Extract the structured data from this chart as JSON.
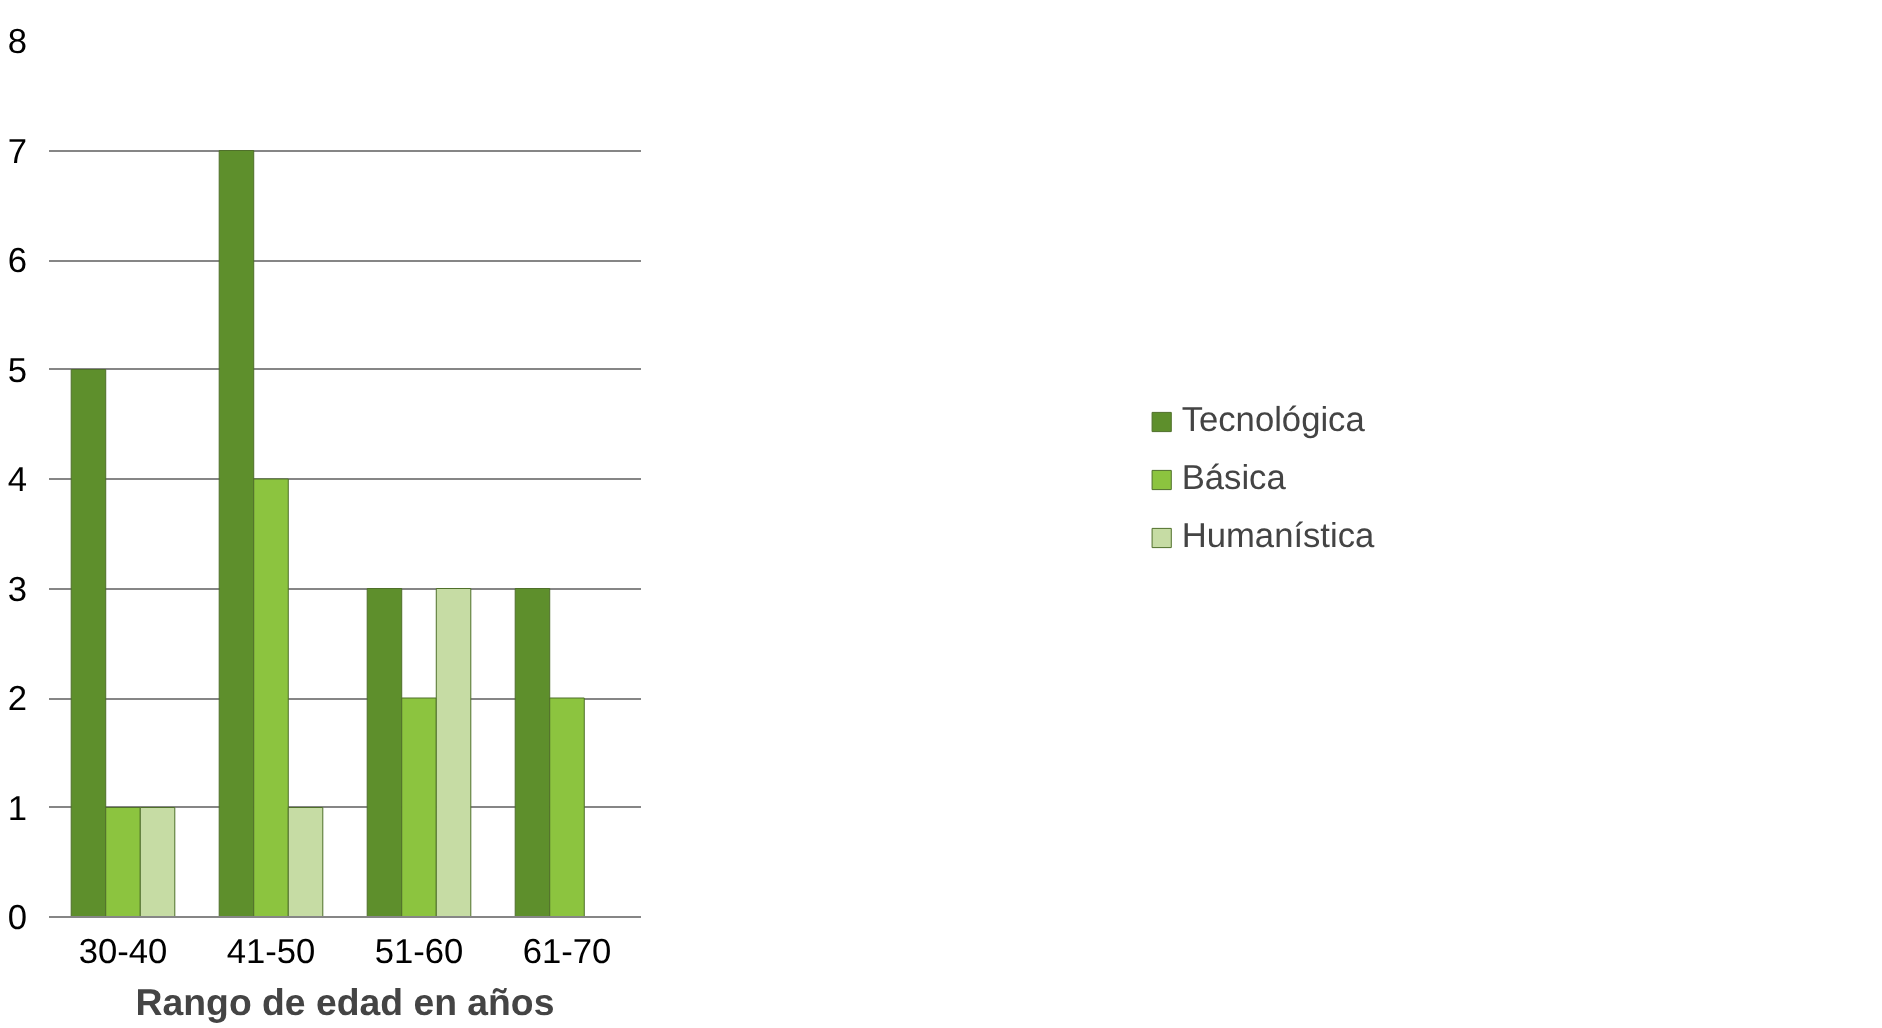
{
  "chart_data": {
    "type": "bar",
    "xlabel": "Rango de edad en años",
    "categories": [
      "30-40",
      "41-50",
      "51-60",
      "61-70"
    ],
    "series": [
      {
        "name": "Tecnológica",
        "color": "#5e8f2c",
        "values": [
          5,
          7,
          3,
          3
        ]
      },
      {
        "name": "Básica",
        "color": "#8cc43f",
        "values": [
          1,
          4,
          2,
          2
        ]
      },
      {
        "name": "Humanística",
        "color": "#c6dca4",
        "values": [
          1,
          1,
          3,
          null
        ]
      }
    ],
    "ylim": [
      0,
      8
    ],
    "yticks": [
      0,
      1,
      2,
      3,
      4,
      5,
      6,
      7,
      8
    ],
    "grid": "y",
    "legend": "right"
  }
}
